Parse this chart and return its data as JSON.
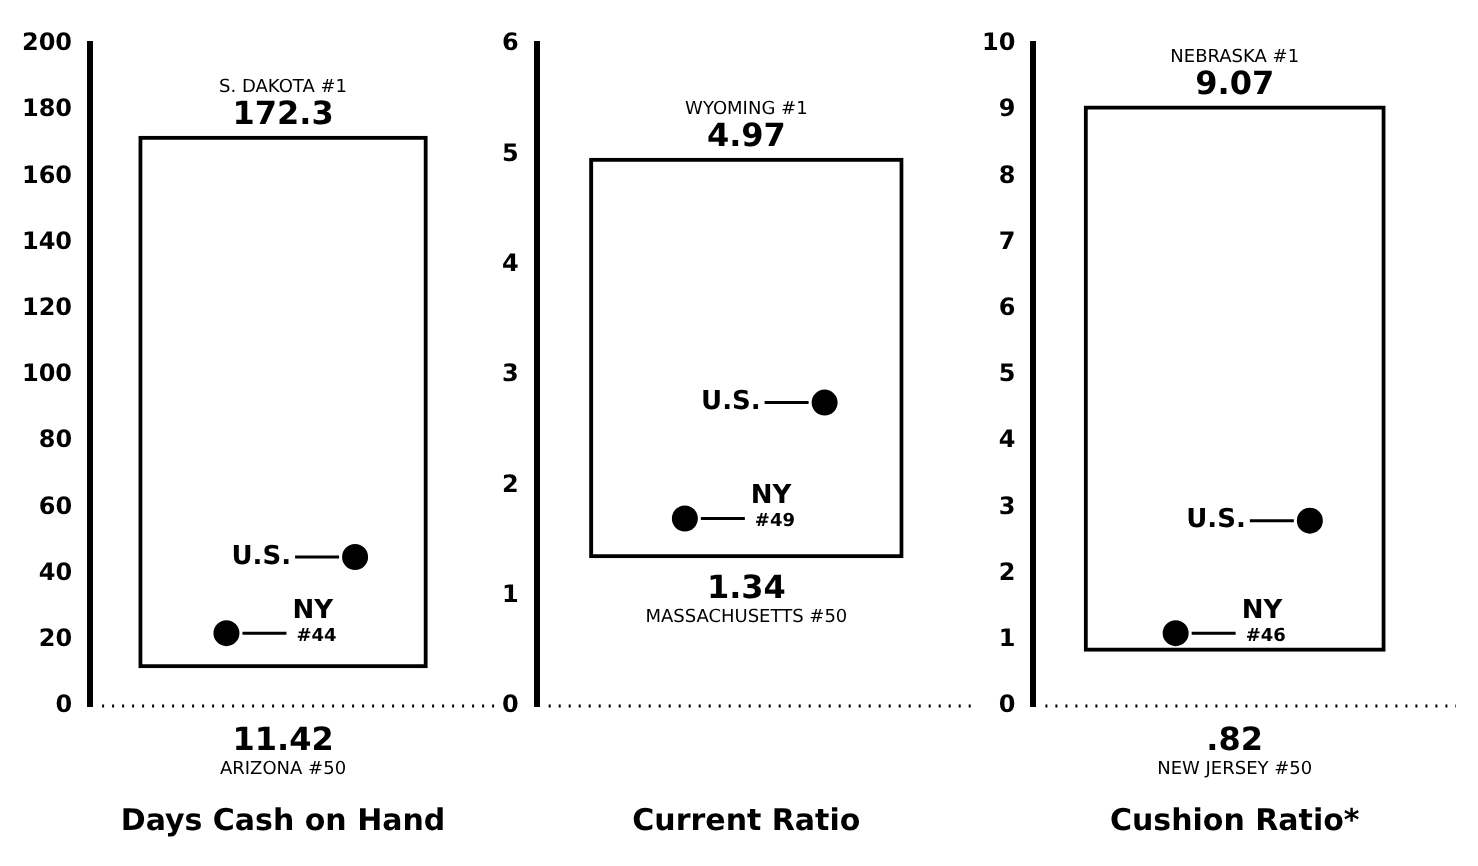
{
  "chart_data": [
    {
      "type": "bar",
      "xlabel": "Days Cash on Hand",
      "categories": [
        null
      ],
      "ylim": [
        0,
        200
      ],
      "yticks": [
        0,
        20,
        40,
        60,
        80,
        100,
        120,
        140,
        160,
        180,
        200
      ],
      "grid": false,
      "marker": "circle",
      "ref_lines": [
        {
          "axis": "y",
          "value": 0,
          "line_style": "dotted"
        }
      ],
      "series": [
        {
          "color": "#000000",
          "values": [
            160.88
          ],
          "base": [
            11.42
          ]
        },
        {
          "type": "scatter",
          "name": "U.S.",
          "color": "#000000",
          "values": [
            45
          ]
        },
        {
          "type": "scatter",
          "name": "NY",
          "color": "#000000",
          "values": [
            22
          ]
        }
      ],
      "annotations": [
        "S. DAKOTA #1",
        {
          "text": "172.3",
          "y": 172.3
        },
        {
          "text": "11.42",
          "y": 11.42
        },
        "ARIZONA #50",
        "#44"
      ]
    },
    {
      "type": "bar",
      "xlabel": "Current Ratio",
      "categories": [
        null
      ],
      "ylim": [
        0,
        6
      ],
      "yticks": [
        0,
        1,
        2,
        3,
        4,
        5,
        6
      ],
      "grid": false,
      "marker": "circle",
      "ref_lines": [
        {
          "axis": "y",
          "value": 0,
          "line_style": "dotted"
        }
      ],
      "series": [
        {
          "color": "#000000",
          "values": [
            3.63
          ],
          "base": [
            1.34
          ]
        },
        {
          "type": "scatter",
          "name": "U.S.",
          "color": "#000000",
          "values": [
            2.75
          ]
        },
        {
          "type": "scatter",
          "name": "NY",
          "color": "#000000",
          "values": [
            1.7
          ]
        }
      ],
      "annotations": [
        "WYOMING #1",
        {
          "text": "4.97",
          "y": 4.97
        },
        {
          "text": "1.34",
          "y": 1.34
        },
        "MASSACHUSETTS #50",
        "#49"
      ]
    },
    {
      "type": "bar",
      "xlabel": "Cushion Ratio*",
      "categories": [
        null
      ],
      "ylim": [
        0,
        10
      ],
      "yticks": [
        0,
        1,
        2,
        3,
        4,
        5,
        6,
        7,
        8,
        9,
        10
      ],
      "grid": false,
      "marker": "circle",
      "ref_lines": [
        {
          "axis": "y",
          "value": 0,
          "line_style": "dotted"
        }
      ],
      "series": [
        {
          "color": "#000000",
          "values": [
            8.25
          ],
          "base": [
            0.82
          ]
        },
        {
          "type": "scatter",
          "name": "U.S.",
          "color": "#000000",
          "values": [
            2.8
          ]
        },
        {
          "type": "scatter",
          "name": "NY",
          "color": "#000000",
          "values": [
            1.1
          ]
        }
      ],
      "annotations": [
        "NEBRASKA #1",
        {
          "text": "9.07",
          "y": 9.07
        },
        {
          "text": ".82",
          "y": 0.82
        },
        "NEW JERSEY #50",
        "#46"
      ]
    }
  ]
}
